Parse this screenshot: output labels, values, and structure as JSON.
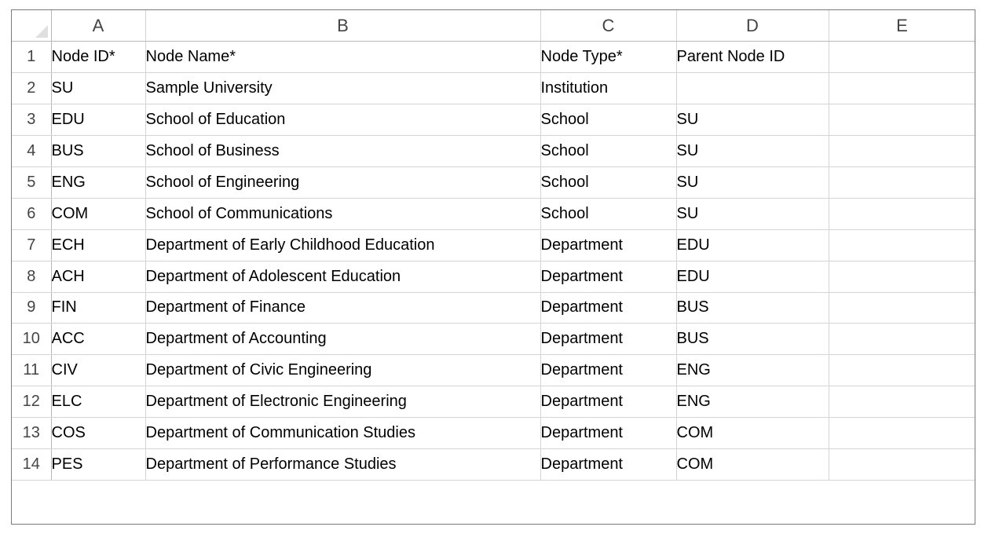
{
  "columns": [
    "A",
    "B",
    "C",
    "D",
    "E"
  ],
  "rows": [
    {
      "num": "1",
      "cells": [
        "Node ID*",
        "Node Name*",
        "Node Type*",
        "Parent Node ID",
        ""
      ]
    },
    {
      "num": "2",
      "cells": [
        "SU",
        "Sample University",
        "Institution",
        "",
        ""
      ]
    },
    {
      "num": "3",
      "cells": [
        "EDU",
        "School of Education",
        "School",
        "SU",
        ""
      ]
    },
    {
      "num": "4",
      "cells": [
        "BUS",
        "School of Business",
        "School",
        "SU",
        ""
      ]
    },
    {
      "num": "5",
      "cells": [
        "ENG",
        "School of Engineering",
        "School",
        "SU",
        ""
      ]
    },
    {
      "num": "6",
      "cells": [
        "COM",
        "School of Communications",
        "School",
        "SU",
        ""
      ]
    },
    {
      "num": "7",
      "cells": [
        "ECH",
        "Department of Early Childhood Education",
        "Department",
        "EDU",
        ""
      ]
    },
    {
      "num": "8",
      "cells": [
        "ACH",
        "Department of Adolescent Education",
        "Department",
        "EDU",
        ""
      ]
    },
    {
      "num": "9",
      "cells": [
        "FIN",
        "Department of Finance",
        "Department",
        "BUS",
        ""
      ]
    },
    {
      "num": "10",
      "cells": [
        "ACC",
        "Department of Accounting",
        "Department",
        "BUS",
        ""
      ]
    },
    {
      "num": "11",
      "cells": [
        "CIV",
        "Department of Civic Engineering",
        "Department",
        "ENG",
        ""
      ]
    },
    {
      "num": "12",
      "cells": [
        "ELC",
        "Department of Electronic Engineering",
        "Department",
        "ENG",
        ""
      ]
    },
    {
      "num": "13",
      "cells": [
        "COS",
        "Department of Communication Studies",
        "Department",
        "COM",
        ""
      ]
    },
    {
      "num": "14",
      "cells": [
        "PES",
        "Department of Performance Studies",
        "Department",
        "COM",
        ""
      ]
    }
  ]
}
